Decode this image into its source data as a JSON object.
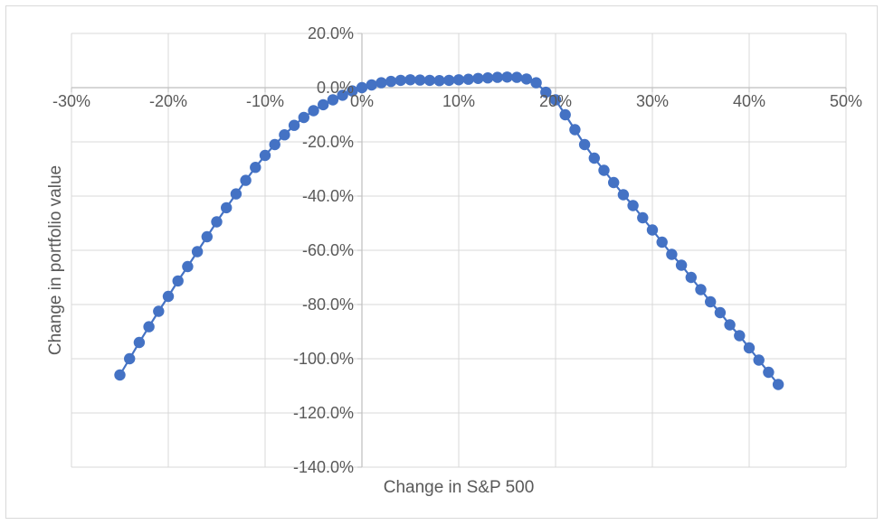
{
  "chart_data": {
    "type": "scatter",
    "title": "",
    "xlabel": "Change in S&P 500",
    "ylabel": "Change in portfolio value",
    "xlim": [
      -30,
      50
    ],
    "ylim": [
      -140,
      20
    ],
    "x_ticks": [
      -30,
      -20,
      -10,
      0,
      10,
      20,
      30,
      40,
      50
    ],
    "x_tick_labels": [
      "-30%",
      "-20%",
      "-10%",
      "0%",
      "10%",
      "20%",
      "30%",
      "40%",
      "50%"
    ],
    "y_ticks": [
      20,
      0,
      -20,
      -40,
      -60,
      -80,
      -100,
      -120,
      -140
    ],
    "y_tick_labels": [
      "20.0%",
      "0.0%",
      "-20.0%",
      "-40.0%",
      "-60.0%",
      "-80.0%",
      "-100.0%",
      "-120.0%",
      "-140.0%"
    ],
    "grid": true,
    "legend": "none",
    "series": [
      {
        "color": "#4472c4",
        "x": [
          -25,
          -24,
          -23,
          -22,
          -21,
          -20,
          -19,
          -18,
          -17,
          -16,
          -15,
          -14,
          -13,
          -12,
          -11,
          -10,
          -9,
          -8,
          -7,
          -6,
          -5,
          -4,
          -3,
          -2,
          -1,
          0,
          1,
          2,
          3,
          4,
          5,
          6,
          7,
          8,
          9,
          10,
          11,
          12,
          13,
          14,
          15,
          16,
          17,
          18,
          19,
          20,
          21,
          22,
          23,
          24,
          25,
          26,
          27,
          28,
          29,
          30,
          31,
          32,
          33,
          34,
          35,
          36,
          37,
          38,
          39,
          40,
          41,
          42,
          43
        ],
        "y": [
          -106,
          -100,
          -94,
          -88.2,
          -82.5,
          -77,
          -71.3,
          -66,
          -60.5,
          -55,
          -49.5,
          -44.3,
          -39.2,
          -34.2,
          -29.4,
          -25,
          -21,
          -17.4,
          -13.9,
          -11,
          -8.5,
          -6.3,
          -4.5,
          -2.8,
          -1.2,
          0,
          1,
          1.8,
          2.3,
          2.7,
          2.9,
          2.8,
          2.7,
          2.6,
          2.7,
          2.9,
          3.1,
          3.4,
          3.6,
          3.8,
          3.9,
          3.8,
          3.2,
          1.8,
          -1.7,
          -4.5,
          -10,
          -15.5,
          -21,
          -26,
          -30.5,
          -35,
          -39.5,
          -43.5,
          -48,
          -52.5,
          -57,
          -61.5,
          -65.5,
          -70,
          -74.5,
          -79,
          -83,
          -87.5,
          -91.5,
          -96,
          -100.5,
          -105,
          -109.5
        ]
      }
    ]
  }
}
